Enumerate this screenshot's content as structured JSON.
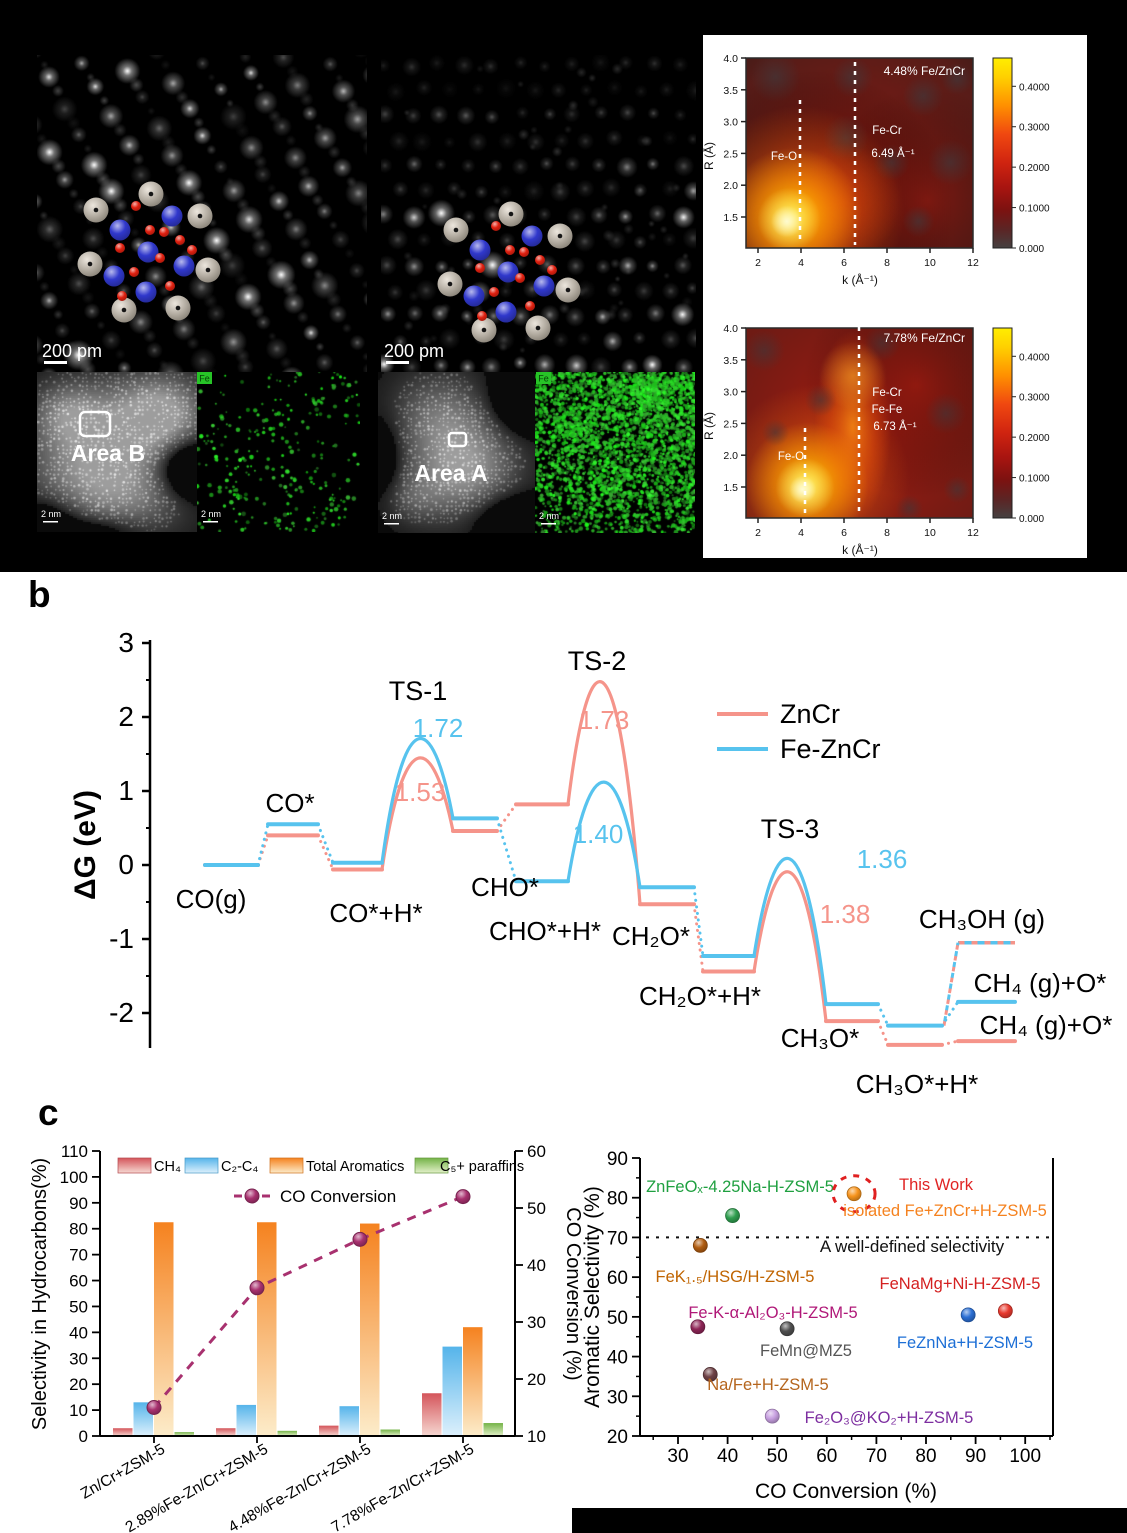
{
  "panel_a": {
    "stem_images": [
      {
        "scale_label": "200 pm"
      },
      {
        "scale_label": "200 pm"
      }
    ],
    "haadf_images": [
      {
        "area_label": "Area B",
        "scale_label": "2 nm"
      },
      {
        "area_label": "Area A",
        "scale_label": "2 nm"
      }
    ],
    "eds_maps": [
      {
        "element_label": "Fe",
        "scale_label": "2 nm"
      },
      {
        "element_label": "Fe",
        "scale_label": "2 nm"
      }
    ]
  },
  "panel_b": {
    "label": "b"
  },
  "panel_c": {
    "label": "c"
  },
  "chart_data": [
    {
      "id": "energy_diagram",
      "type": "line",
      "panel": "b",
      "ylabel": "ΔG (eV)",
      "yticks": [
        3,
        2,
        1,
        0,
        -1,
        -2
      ],
      "series_meta": [
        {
          "key": "ZnCr",
          "name": "ZnCr",
          "color": "#f5948a"
        },
        {
          "key": "FeZnCr",
          "name": "Fe-ZnCr",
          "color": "#57c3ee"
        }
      ],
      "stages": [
        {
          "label": "CO(g)",
          "ZnCr": 0.0,
          "FeZnCr": 0.0
        },
        {
          "label": "CO*",
          "ZnCr": 0.4,
          "FeZnCr": 0.55,
          "connector": "dotted"
        },
        {
          "label": "CO*+H*",
          "ZnCr": -0.06,
          "FeZnCr": 0.03,
          "connector": "dotted"
        },
        {
          "label": "CHO*",
          "ZnCr": 0.46,
          "FeZnCr": 0.63,
          "connector": "ts",
          "ts_label": "TS-1",
          "ts_shown": {
            "FeZnCr": "1.72",
            "ZnCr": "1.53"
          },
          "ts_peak": {
            "ZnCr": 1.44,
            "FeZnCr": 1.7
          }
        },
        {
          "label": "CHO*+H*",
          "ZnCr": 0.82,
          "FeZnCr": -0.22,
          "connector": "dotted"
        },
        {
          "label": "CH₂O*",
          "ZnCr": -0.53,
          "FeZnCr": -0.3,
          "connector": "ts",
          "ts_label": "TS-2",
          "ts_shown": {
            "ZnCr": "1.73",
            "FeZnCr": "1.40"
          },
          "ts_peak": {
            "ZnCr": 2.45,
            "FeZnCr": 1.12
          }
        },
        {
          "label": "CH₂O*+H*",
          "ZnCr": -1.44,
          "FeZnCr": -1.23,
          "connector": "dotted"
        },
        {
          "label": "CH₃O*",
          "ZnCr": -2.11,
          "FeZnCr": -1.88,
          "connector": "ts",
          "ts_label": "TS-3",
          "ts_shown": {
            "FeZnCr": "1.36",
            "ZnCr": "1.38"
          },
          "ts_peak": {
            "ZnCr": -0.1,
            "FeZnCr": 0.08
          }
        },
        {
          "label": "CH₃O*+H*",
          "ZnCr": -2.43,
          "FeZnCr": -2.17,
          "connector": "dotted"
        }
      ],
      "final_states": [
        {
          "label": "CH₃OH (g)",
          "ZnCr": -1.05,
          "FeZnCr": -1.05,
          "style": "dashed"
        },
        {
          "label": "CH₄ (g)+O*",
          "series": "FeZnCr",
          "value": -1.85
        },
        {
          "label": "CH₄ (g)+O*",
          "series": "ZnCr",
          "value": -2.38
        }
      ]
    },
    {
      "id": "selectivity_bars",
      "type": "bar",
      "panel": "c-left",
      "categories": [
        "Zn/Cr+ZSM-5",
        "2.89%Fe-Zn/Cr+ZSM-5",
        "4.48%Fe-Zn/Cr+ZSM-5",
        "7.78%Fe-Zn/Cr+ZSM-5"
      ],
      "series": [
        {
          "name": "CH₄",
          "color": "#d4555b",
          "color_light": "#f6d8d2",
          "values": [
            3,
            3,
            4,
            16.5
          ]
        },
        {
          "name": "C₂-C₄",
          "color": "#55b4ea",
          "color_light": "#ddf0fc",
          "values": [
            13,
            12,
            11.5,
            34.5
          ]
        },
        {
          "name": "Total Aromatics",
          "color": "#f5821f",
          "color_light": "#fcecca",
          "values": [
            82.5,
            82.5,
            82,
            42
          ]
        },
        {
          "name": "C₅+ paraffins",
          "color": "#74b347",
          "color_light": "#e3f0c9",
          "values": [
            1.5,
            2,
            2.5,
            5
          ]
        }
      ],
      "line_series": {
        "name": "CO Conversion",
        "color": "#a8316f",
        "values": [
          15,
          36,
          44.5,
          52
        ]
      },
      "ylabel_left": "Selectivity in Hydrocarbons(%)",
      "ylabel_right": "CO Conversion (%)",
      "ylim_left": [
        0,
        110
      ],
      "ytick_step_left": 10,
      "ylim_right": [
        10,
        60
      ],
      "ytick_step_right": 10
    },
    {
      "id": "benchmark_scatter",
      "type": "scatter",
      "panel": "c-right",
      "xlabel": "CO Conversion (%)",
      "ylabel": "Aromatic Selectivity (%)",
      "xlim": [
        23,
        105
      ],
      "ylim": [
        20,
        90
      ],
      "xticks": [
        30,
        40,
        50,
        60,
        70,
        80,
        90,
        100
      ],
      "yticks": [
        20,
        30,
        40,
        50,
        60,
        70,
        80,
        90
      ],
      "threshold_line": {
        "y": 70,
        "label": "A well-defined selectivity",
        "color": "#111111"
      },
      "points": [
        {
          "label": "ZnFeOₓ-4.25Na-H-ZSM-5",
          "x": 41,
          "y": 75.5,
          "marker_color": "#2f9e4f",
          "label_color": "#1fa040"
        },
        {
          "label": "This Work",
          "x": 65.5,
          "y": 81,
          "marker_color": "#f7941d",
          "label_color": "#e02424",
          "highlighted": true
        },
        {
          "label": "FeK₁.₅/HSG/H-ZSM-5",
          "x": 34.5,
          "y": 68,
          "marker_color": "#b05c10",
          "label_color": "#c06400"
        },
        {
          "label": "Fe-K-α-Al₂O₃-H-ZSM-5",
          "x": 34,
          "y": 47.5,
          "marker_color": "#8e2557",
          "label_color": "#b01878"
        },
        {
          "label": "FeMn@MZ5",
          "x": 52,
          "y": 47,
          "marker_color": "#4f4f4f",
          "label_color": "#555555"
        },
        {
          "label": "Na/Fe+H-ZSM-5",
          "x": 36.5,
          "y": 35.5,
          "marker_color": "#6e4146",
          "label_color": "#b5651d"
        },
        {
          "label": "Fe₂O₃@KO₂+H-ZSM-5",
          "x": 49,
          "y": 25,
          "marker_color": "#c79fe0",
          "label_color": "#7d2ea0"
        },
        {
          "label": "FeZnNa+H-ZSM-5",
          "x": 88.5,
          "y": 50.5,
          "marker_color": "#2b6fd4",
          "label_color": "#1d6fd6"
        },
        {
          "label": "FeNaMg+Ni-H-ZSM-5",
          "x": 96,
          "y": 51.5,
          "marker_color": "#e8392e",
          "label_color": "#d42020"
        }
      ],
      "extra_annotations": [
        {
          "text": "isolated Fe+ZnCr+H-ZSM-5",
          "color": "#f5821f"
        }
      ]
    },
    {
      "id": "wt_exafs_448",
      "type": "heatmap",
      "title": "4.48% Fe/ZnCr",
      "xlabel": "k (Å⁻¹)",
      "ylabel": "R (Å)",
      "xticks": [
        2,
        4,
        6,
        8,
        10,
        12
      ],
      "yticks": [
        "4.0",
        "3.5",
        "3.0",
        "2.5",
        "2.0",
        "1.5"
      ],
      "xlim": [
        1.45,
        12
      ],
      "ylim": [
        1.1,
        4.0
      ],
      "colorbar_ticks": [
        "0.4000",
        "0.3000",
        "0.2000",
        "0.1000",
        "0.000"
      ],
      "colorbar_max": 0.47,
      "annotations": [
        "Fe-O",
        "Fe-Cr",
        "6.49 Å⁻¹"
      ],
      "dashed_lines_k": [
        3.95,
        6.49
      ],
      "peaks": [
        {
          "label": "Fe-O",
          "k": 3.9,
          "R": 1.45,
          "intensity": 0.47
        },
        {
          "label": "Fe-Cr",
          "k": 6.49
        }
      ]
    },
    {
      "id": "wt_exafs_778",
      "type": "heatmap",
      "title": "7.78% Fe/ZnCr",
      "xlabel": "k (Å⁻¹)",
      "ylabel": "R (Å)",
      "xticks": [
        2,
        4,
        6,
        8,
        10,
        12
      ],
      "yticks": [
        "4.0",
        "3.5",
        "3.0",
        "2.5",
        "2.0",
        "1.5"
      ],
      "xlim": [
        1.45,
        12
      ],
      "ylim": [
        1.1,
        4.0
      ],
      "colorbar_ticks": [
        "0.4000",
        "0.3000",
        "0.2000",
        "0.1000",
        "0.000"
      ],
      "colorbar_max": 0.47,
      "annotations": [
        "Fe-O",
        "Fe-Cr",
        "Fe-Fe",
        "6.73 Å⁻¹"
      ],
      "dashed_lines_k": [
        4.2,
        6.73
      ],
      "peaks": [
        {
          "label": "Fe-O",
          "k": 4.3,
          "R": 1.4,
          "intensity": 0.47
        },
        {
          "label": "Fe-Cr / Fe-Fe",
          "k": 6.73,
          "R": 2.7
        }
      ]
    }
  ]
}
